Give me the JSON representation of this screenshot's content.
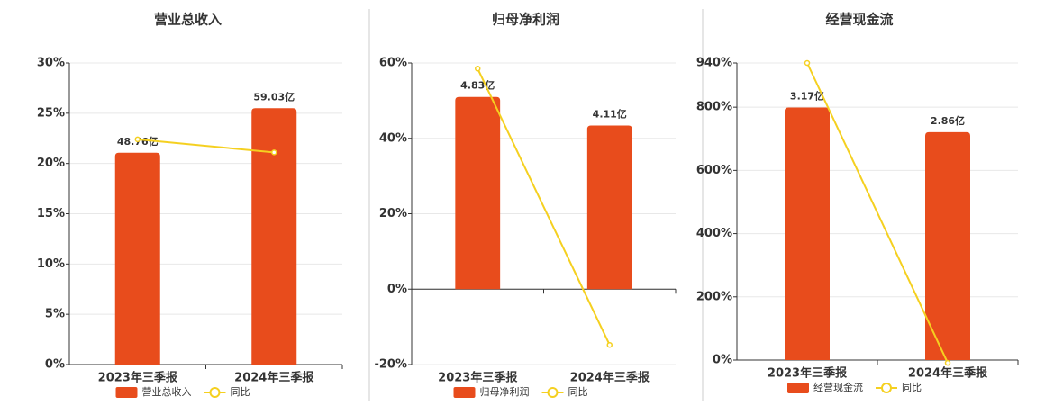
{
  "chart_data": [
    {
      "type": "bar",
      "title": "营业总收入",
      "categories": [
        "2023年三季报",
        "2024年三季报"
      ],
      "series": [
        {
          "name": "营业总收入",
          "type": "bar",
          "color": "#e84c1c",
          "values": [
            48.76,
            59.03
          ],
          "value_labels": [
            "48.76亿",
            "59.03亿"
          ]
        },
        {
          "name": "同比",
          "type": "line",
          "color": "#f5d020",
          "values": [
            22.4,
            21.1
          ]
        }
      ],
      "ylim": [
        0,
        30
      ],
      "yticks": [
        {
          "value": 0,
          "label": "0%"
        },
        {
          "value": 5,
          "label": "5%"
        },
        {
          "value": 10,
          "label": "10%"
        },
        {
          "value": 15,
          "label": "15%"
        },
        {
          "value": 20,
          "label": "20%"
        },
        {
          "value": 25,
          "label": "25%"
        },
        {
          "value": 30,
          "label": "30%"
        }
      ],
      "grid": true
    },
    {
      "type": "bar",
      "title": "归母净利润",
      "categories": [
        "2023年三季报",
        "2024年三季报"
      ],
      "series": [
        {
          "name": "归母净利润",
          "type": "bar",
          "color": "#e84c1c",
          "values": [
            4.83,
            4.11
          ],
          "value_labels": [
            "4.83亿",
            "4.11亿"
          ]
        },
        {
          "name": "同比",
          "type": "line",
          "color": "#f5d020",
          "values": [
            58.5,
            -14.8
          ]
        }
      ],
      "ylim": [
        -20,
        60
      ],
      "yticks": [
        {
          "value": -20,
          "label": "-20%"
        },
        {
          "value": 0,
          "label": "0%"
        },
        {
          "value": 20,
          "label": "20%"
        },
        {
          "value": 40,
          "label": "40%"
        },
        {
          "value": 60,
          "label": "60%"
        }
      ],
      "grid": true
    },
    {
      "type": "bar",
      "title": "经营现金流",
      "categories": [
        "2023年三季报",
        "2024年三季报"
      ],
      "series": [
        {
          "name": "经营现金流",
          "type": "bar",
          "color": "#e84c1c",
          "values": [
            3.17,
            2.86
          ],
          "value_labels": [
            "3.17亿",
            "2.86亿"
          ]
        },
        {
          "name": "同比",
          "type": "line",
          "color": "#f5d020",
          "values": [
            940,
            -9
          ]
        }
      ],
      "ylim": [
        0,
        940
      ],
      "yticks": [
        {
          "value": 0,
          "label": "0%"
        },
        {
          "value": 200,
          "label": "200%"
        },
        {
          "value": 400,
          "label": "400%"
        },
        {
          "value": 600,
          "label": "600%"
        },
        {
          "value": 800,
          "label": "800%"
        },
        {
          "value": 940,
          "label": "940%"
        }
      ],
      "grid": true
    }
  ]
}
